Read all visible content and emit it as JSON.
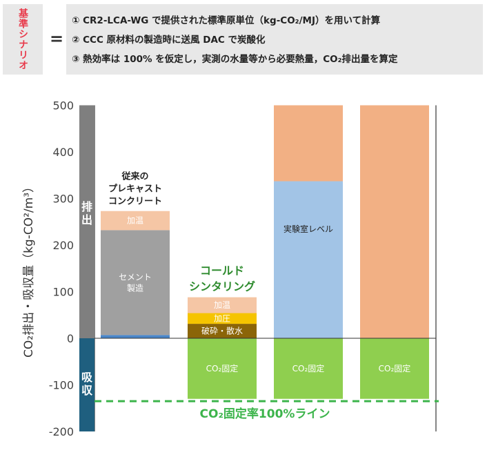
{
  "header": {
    "label": "基準シナリオ",
    "equals": "=",
    "lines": [
      "① CR2-LCA-WG で提供された標準原単位（kg-CO₂/MJ）を用いて計算",
      "② CCC 原材料の製造時に送風 DAC で炭酸化",
      "③ 熱効率は 100% を仮定し，実測の水量等から必要熱量，CO₂排出量を算定"
    ]
  },
  "chart_data": {
    "type": "bar",
    "stacked": true,
    "ylabel": "CO₂排出・吸収量（kg-CO²/m³）",
    "ylim": [
      -200,
      500
    ],
    "yticks": [
      -200,
      -100,
      0,
      100,
      200,
      300,
      400,
      500
    ],
    "band_labels": {
      "emission": "排出",
      "absorption": "吸収"
    },
    "reference_line": {
      "value": -135,
      "label": "CO₂固定率100%ライン",
      "color": "#3cb44b"
    },
    "bars": [
      {
        "name": "従来のプレキャストコンクリート",
        "title_lines": [
          "従来の",
          "プレキャスト",
          "コンクリート"
        ],
        "segments": [
          {
            "label": "",
            "from": 0,
            "to": 7,
            "color": "#4a86c8"
          },
          {
            "label": "セメント製造",
            "label_lines": [
              "セメント",
              "製造"
            ],
            "from": 7,
            "to": 232,
            "color": "#a0a0a0",
            "text_color": "#ffffff"
          },
          {
            "label": "加温",
            "from": 232,
            "to": 273,
            "color": "#f5c6a5",
            "text_color": "#ffffff"
          }
        ]
      },
      {
        "name": "コールドシンタリング",
        "title_lines": [
          "コールド",
          "シンタリング"
        ],
        "title_color": "#2e8b2e",
        "segments": [
          {
            "label": "CO₂固定",
            "from": -130,
            "to": 0,
            "color": "#8fcf4f",
            "text_color": "#ffffff"
          },
          {
            "label": "破砕・散水",
            "from": 0,
            "to": 31,
            "color": "#8b6508",
            "text_color": "#ffffff"
          },
          {
            "label": "加圧",
            "from": 31,
            "to": 54,
            "color": "#f5c400",
            "text_color": "#ffffff"
          },
          {
            "label": "加温",
            "from": 54,
            "to": 88,
            "color": "#f5c6a5",
            "text_color": "#ffffff"
          }
        ]
      },
      {
        "name": "実験室レベル",
        "segments": [
          {
            "label": "CO₂固定",
            "from": -130,
            "to": 0,
            "color": "#8fcf4f",
            "text_color": "#ffffff"
          },
          {
            "label": "実験室レベル",
            "from": 0,
            "to": 337,
            "color": "#a2c4e6",
            "text_color": "#222222"
          },
          {
            "label": "",
            "from": 337,
            "to": 500,
            "color": "#f2b084"
          }
        ]
      },
      {
        "name": "",
        "segments": [
          {
            "label": "CO₂固定",
            "from": -130,
            "to": 0,
            "color": "#8fcf4f",
            "text_color": "#ffffff"
          },
          {
            "label": "",
            "from": 0,
            "to": 500,
            "color": "#f2b084"
          }
        ]
      }
    ],
    "colors": {
      "emission_band": "#7f7f7f",
      "absorption_band": "#1f5f7f"
    }
  }
}
